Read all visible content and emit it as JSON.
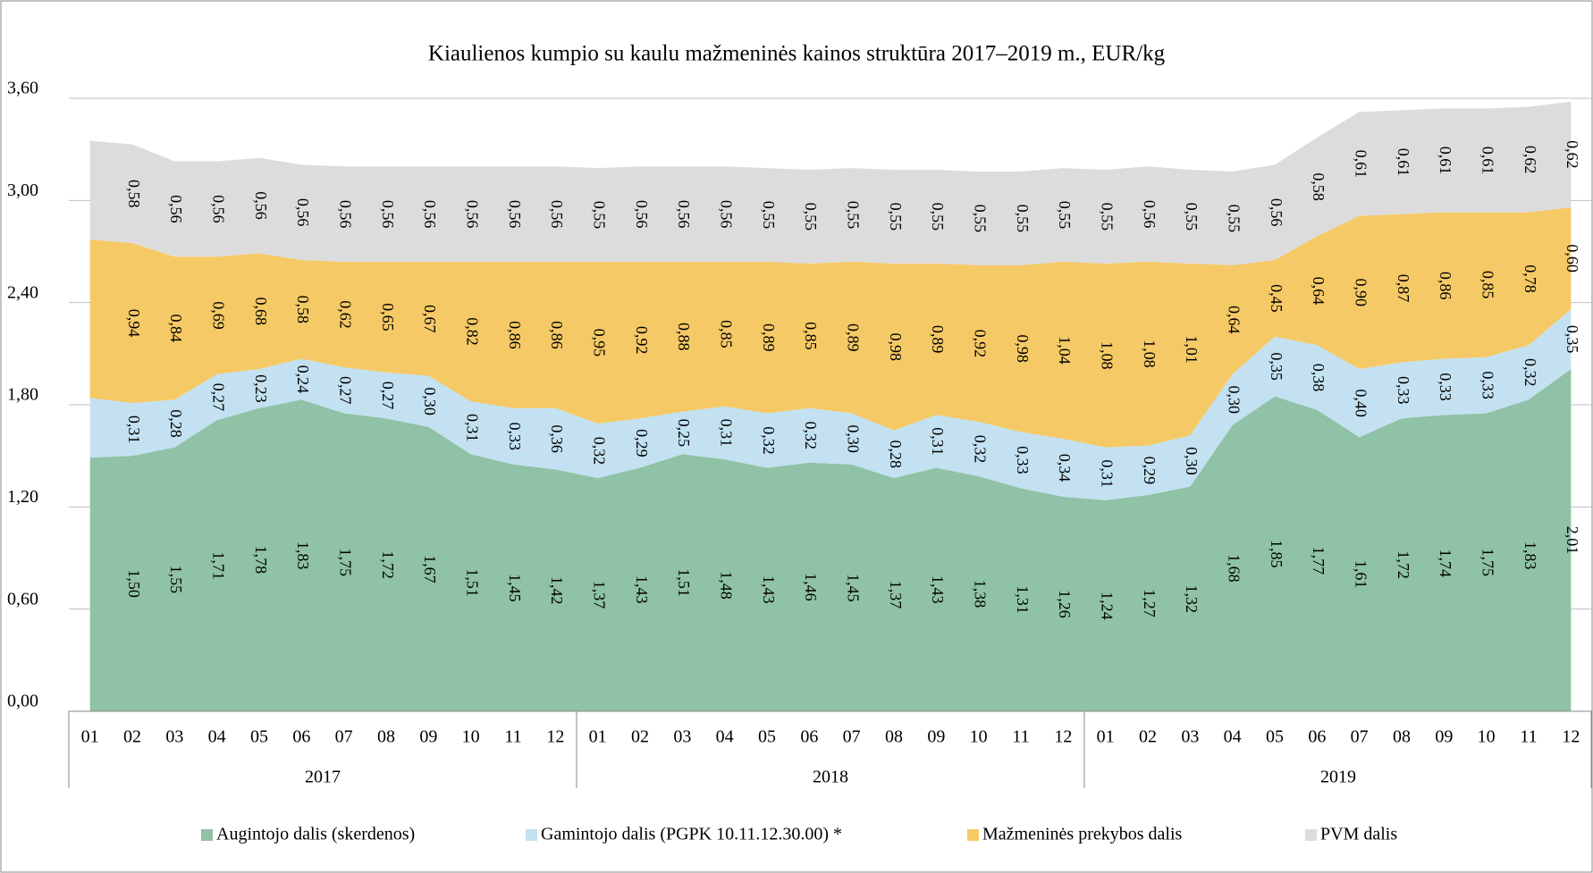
{
  "chart_data": {
    "type": "stacked_area",
    "title": "Kiaulienos kumpio su kaulu mažmeninės kainos struktūra 2017–2019 m., EUR/kg",
    "categories": [
      "01",
      "02",
      "03",
      "04",
      "05",
      "06",
      "07",
      "08",
      "09",
      "10",
      "11",
      "12",
      "01",
      "02",
      "03",
      "04",
      "05",
      "06",
      "07",
      "08",
      "09",
      "10",
      "11",
      "12",
      "01",
      "02",
      "03",
      "04",
      "05",
      "06",
      "07",
      "08",
      "09",
      "10",
      "11",
      "12"
    ],
    "years": [
      "2017",
      "2018",
      "2019"
    ],
    "ylim": [
      0,
      3.6
    ],
    "yticks": [
      {
        "value": 0,
        "label": "0,00"
      },
      {
        "value": 0.6,
        "label": "0,60"
      },
      {
        "value": 1.2,
        "label": "1,20"
      },
      {
        "value": 1.8,
        "label": "1,80"
      },
      {
        "value": 2.4,
        "label": "2,40"
      },
      {
        "value": 3.0,
        "label": "3,00"
      },
      {
        "value": 3.6,
        "label": "3,60"
      }
    ],
    "grid": true,
    "legend": "bottom",
    "series": [
      {
        "name": "Augintojo dalis (skerdenos)",
        "color": "#8fc2a6",
        "values": [
          1.49,
          1.5,
          1.55,
          1.71,
          1.78,
          1.83,
          1.75,
          1.72,
          1.67,
          1.51,
          1.45,
          1.42,
          1.37,
          1.43,
          1.51,
          1.48,
          1.43,
          1.46,
          1.45,
          1.37,
          1.43,
          1.38,
          1.31,
          1.26,
          1.24,
          1.27,
          1.32,
          1.68,
          1.85,
          1.77,
          1.61,
          1.72,
          1.74,
          1.75,
          1.83,
          2.01
        ],
        "value_labels": [
          null,
          "1,50",
          "1,55",
          "1,71",
          "1,78",
          "1,83",
          "1,75",
          "1,72",
          "1,67",
          "1,51",
          "1,45",
          "1,42",
          "1,37",
          "1,43",
          "1,51",
          "1,48",
          "1,43",
          "1,46",
          "1,45",
          "1,37",
          "1,43",
          "1,38",
          "1,31",
          "1,26",
          "1,24",
          "1,27",
          "1,32",
          "1,68",
          "1,85",
          "1,77",
          "1,61",
          "1,72",
          "1,74",
          "1,75",
          "1,83",
          "2,01"
        ]
      },
      {
        "name": "Gamintojo dalis (PGPK 10.11.12.30.00) *",
        "color": "#c3e1f1",
        "values": [
          0.35,
          0.31,
          0.28,
          0.27,
          0.23,
          0.24,
          0.27,
          0.27,
          0.3,
          0.31,
          0.33,
          0.36,
          0.32,
          0.29,
          0.25,
          0.31,
          0.32,
          0.32,
          0.3,
          0.28,
          0.31,
          0.32,
          0.33,
          0.34,
          0.31,
          0.29,
          0.3,
          0.3,
          0.35,
          0.38,
          0.4,
          0.33,
          0.33,
          0.33,
          0.32,
          0.35
        ],
        "value_labels": [
          null,
          "0,31",
          "0,28",
          "0,27",
          "0,23",
          "0,24",
          "0,27",
          "0,27",
          "0,30",
          "0,31",
          "0,33",
          "0,36",
          "0,32",
          "0,29",
          "0,25",
          "0,31",
          "0,32",
          "0,32",
          "0,30",
          "0,28",
          "0,31",
          "0,32",
          "0,33",
          "0,34",
          "0,31",
          "0,29",
          "0,30",
          "0,30",
          "0,35",
          "0,38",
          "0,40",
          "0,33",
          "0,33",
          "0,33",
          "0,32",
          "0,35"
        ]
      },
      {
        "name": "Mažmeninės prekybos dalis",
        "color": "#f5c966",
        "values": [
          0.93,
          0.94,
          0.84,
          0.69,
          0.68,
          0.58,
          0.62,
          0.65,
          0.67,
          0.82,
          0.86,
          0.86,
          0.95,
          0.92,
          0.88,
          0.85,
          0.89,
          0.85,
          0.89,
          0.98,
          0.89,
          0.92,
          0.98,
          1.04,
          1.08,
          1.08,
          1.01,
          0.64,
          0.45,
          0.64,
          0.9,
          0.87,
          0.86,
          0.85,
          0.78,
          0.6
        ],
        "value_labels": [
          null,
          "0,94",
          "0,84",
          "0,69",
          "0,68",
          "0,58",
          "0,62",
          "0,65",
          "0,67",
          "0,82",
          "0,86",
          "0,86",
          "0,95",
          "0,92",
          "0,88",
          "0,85",
          "0,89",
          "0,85",
          "0,89",
          "0,98",
          "0,89",
          "0,92",
          "0,98",
          "1,04",
          "1,08",
          "1,08",
          "1,01",
          "0,64",
          "0,45",
          "0,64",
          "0,90",
          "0,87",
          "0,86",
          "0,85",
          "0,78",
          "0,60"
        ]
      },
      {
        "name": "PVM dalis",
        "color": "#dcdcdc",
        "values": [
          0.58,
          0.58,
          0.56,
          0.56,
          0.56,
          0.56,
          0.56,
          0.56,
          0.56,
          0.56,
          0.56,
          0.56,
          0.55,
          0.56,
          0.56,
          0.56,
          0.55,
          0.55,
          0.55,
          0.55,
          0.55,
          0.55,
          0.55,
          0.55,
          0.55,
          0.56,
          0.55,
          0.55,
          0.56,
          0.58,
          0.61,
          0.61,
          0.61,
          0.61,
          0.62,
          0.62
        ],
        "value_labels": [
          null,
          "0,58",
          "0,56",
          "0,56",
          "0,56",
          "0,56",
          "0,56",
          "0,56",
          "0,56",
          "0,56",
          "0,56",
          "0,56",
          "0,55",
          "0,56",
          "0,56",
          "0,56",
          "0,55",
          "0,55",
          "0,55",
          "0,55",
          "0,55",
          "0,55",
          "0,55",
          "0,55",
          "0,55",
          "0,56",
          "0,55",
          "0,55",
          "0,56",
          "0,58",
          "0,61",
          "0,61",
          "0,61",
          "0,61",
          "0,62",
          "0,62"
        ]
      }
    ]
  }
}
